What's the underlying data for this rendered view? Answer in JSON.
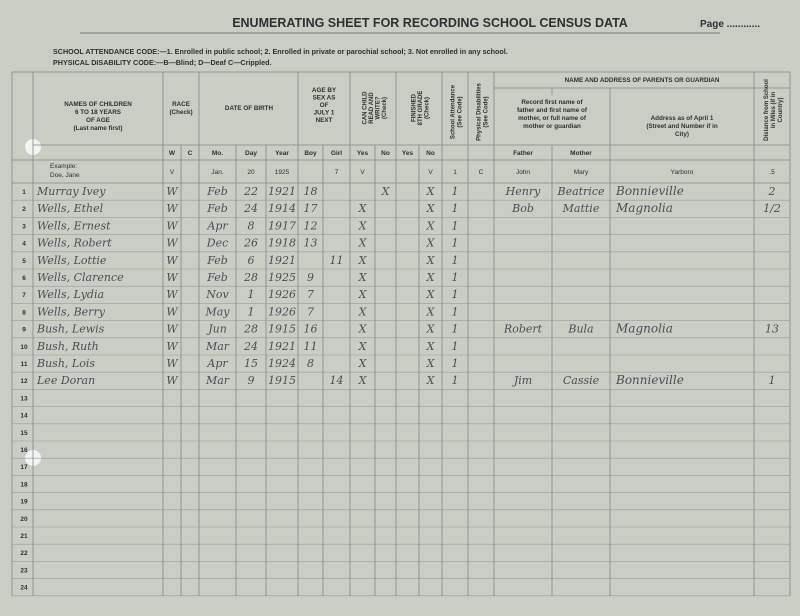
{
  "header": {
    "title": "ENUMERATING SHEET FOR RECORDING SCHOOL CENSUS DATA",
    "page_label": "Page ............"
  },
  "codes": {
    "attendance": "SCHOOL ATTENDANCE CODE:—1. Enrolled in public school; 2. Enrolled in private or parochial school; 3. Not enrolled in any school.",
    "disability": "PHYSICAL DISABILITY CODE:—B—Blind; D—Deaf C—Crippled."
  },
  "table": {
    "headings": {
      "names": [
        "NAMES OF CHILDREN",
        "6 TO 18 YEARS",
        "OF AGE",
        "(Last name first)"
      ],
      "race": [
        "RACE",
        "(Check)"
      ],
      "dob": [
        "DATE OF BIRTH"
      ],
      "age": [
        "AGE BY",
        "SEX AS",
        "OF",
        "JULY 1",
        "NEXT"
      ],
      "read": [
        "CAN CHILD",
        "READ AND",
        "WRITE?",
        "(Check)"
      ],
      "eighth": [
        "FINISHED",
        "8TH GRADE",
        "(Check)"
      ],
      "attendance": [
        "School Attendance",
        "(See Code)"
      ],
      "disability": [
        "Physical Disabilities",
        "(See Code)"
      ],
      "parents": [
        "NAME AND ADDRESS OF PARENTS OR GUARDIAN"
      ],
      "record": [
        "Record first name of",
        "father and first name of",
        "mother, or full name of",
        "mother or guardian"
      ],
      "address": [
        "Address as of April 1",
        "(Street and Number if in",
        "City)"
      ],
      "distance": [
        "Distance from School",
        "in Miles (if in",
        "Country)"
      ]
    },
    "subheadings": {
      "w": "W",
      "c": "C",
      "mo": "Mo.",
      "day": "Day",
      "year": "Year",
      "boy": "Boy",
      "girl": "Girl",
      "read_yes": "Yes",
      "read_no": "No",
      "eighth_yes": "Yes",
      "eighth_no": "No",
      "father": "Father",
      "mother": "Mother"
    },
    "example": {
      "label": "Example:",
      "name": "Doe, Jane",
      "w": "V",
      "mo": "Jan.",
      "day": "20",
      "year": "1925",
      "girl": "7",
      "read_yes": "V",
      "eighth_no": "V",
      "attendance": "1",
      "disability": "C",
      "father": "John",
      "mother": "Mary",
      "address": "Yarboro",
      "distance": ".5"
    },
    "rows": [
      {
        "number": 1,
        "name": "Murray Ivey",
        "w": "W",
        "mo": "Feb",
        "day": "22",
        "year": "1921",
        "boy": "18",
        "read_no": "X",
        "eighth_no": "X",
        "attendance": "1",
        "father": "Henry",
        "mother": "Beatrice",
        "address": "Bonnieville",
        "distance": "2"
      },
      {
        "number": 2,
        "name": "Wells, Ethel",
        "w": "W",
        "mo": "Feb",
        "day": "24",
        "year": "1914",
        "boy": "17",
        "read_yes": "X",
        "eighth_no": "X",
        "attendance": "1",
        "father": "Bob",
        "mother": "Mattie",
        "address": "Magnolia",
        "distance": "1/2"
      },
      {
        "number": 3,
        "name": "Wells, Ernest",
        "w": "W",
        "mo": "Apr",
        "day": "8",
        "year": "1917",
        "boy": "12",
        "read_yes": "X",
        "eighth_no": "X",
        "attendance": "1"
      },
      {
        "number": 4,
        "name": "Wells, Robert",
        "w": "W",
        "mo": "Dec",
        "day": "26",
        "year": "1918",
        "boy": "13",
        "read_yes": "X",
        "eighth_no": "X",
        "attendance": "1"
      },
      {
        "number": 5,
        "name": "Wells, Lottie",
        "w": "W",
        "mo": "Feb",
        "day": "6",
        "year": "1921",
        "girl": "11",
        "read_yes": "X",
        "eighth_no": "X",
        "attendance": "1"
      },
      {
        "number": 6,
        "name": "Wells, Clarence",
        "w": "W",
        "mo": "Feb",
        "day": "28",
        "year": "1925",
        "boy": "9",
        "read_yes": "X",
        "eighth_no": "X",
        "attendance": "1"
      },
      {
        "number": 7,
        "name": "Wells, Lydia",
        "w": "W",
        "mo": "Nov",
        "day": "1",
        "year": "1926",
        "boy": "7",
        "read_yes": "X",
        "eighth_no": "X",
        "attendance": "1"
      },
      {
        "number": 8,
        "name": "Wells, Berry",
        "w": "W",
        "mo": "May",
        "day": "1",
        "year": "1926",
        "boy": "7",
        "read_yes": "X",
        "eighth_no": "X",
        "attendance": "1"
      },
      {
        "number": 9,
        "name": "Bush, Lewis",
        "w": "W",
        "mo": "Jun",
        "day": "28",
        "year": "1915",
        "boy": "16",
        "read_yes": "X",
        "eighth_no": "X",
        "attendance": "1",
        "father": "Robert",
        "mother": "Bula",
        "address": "Magnolia",
        "distance": "13"
      },
      {
        "number": 10,
        "name": "Bush, Ruth",
        "w": "W",
        "mo": "Mar",
        "day": "24",
        "year": "1921",
        "boy": "11",
        "read_yes": "X",
        "eighth_no": "X",
        "attendance": "1"
      },
      {
        "number": 11,
        "name": "Bush, Lois",
        "w": "W",
        "mo": "Apr",
        "day": "15",
        "year": "1924",
        "boy": "8",
        "read_yes": "X",
        "eighth_no": "X",
        "attendance": "1"
      },
      {
        "number": 12,
        "name": "Lee Doran",
        "w": "W",
        "mo": "Mar",
        "day": "9",
        "year": "1915",
        "girl": "14",
        "read_yes": "X",
        "eighth_no": "X",
        "attendance": "1",
        "father": "Jim",
        "mother": "Cassie",
        "address": "Bonnieville",
        "distance": "1"
      },
      {
        "number": 13
      },
      {
        "number": 14
      },
      {
        "number": 15
      },
      {
        "number": 16
      },
      {
        "number": 17
      },
      {
        "number": 18
      },
      {
        "number": 19
      },
      {
        "number": 20
      },
      {
        "number": 21
      },
      {
        "number": 22
      },
      {
        "number": 23
      },
      {
        "number": 24
      }
    ]
  }
}
